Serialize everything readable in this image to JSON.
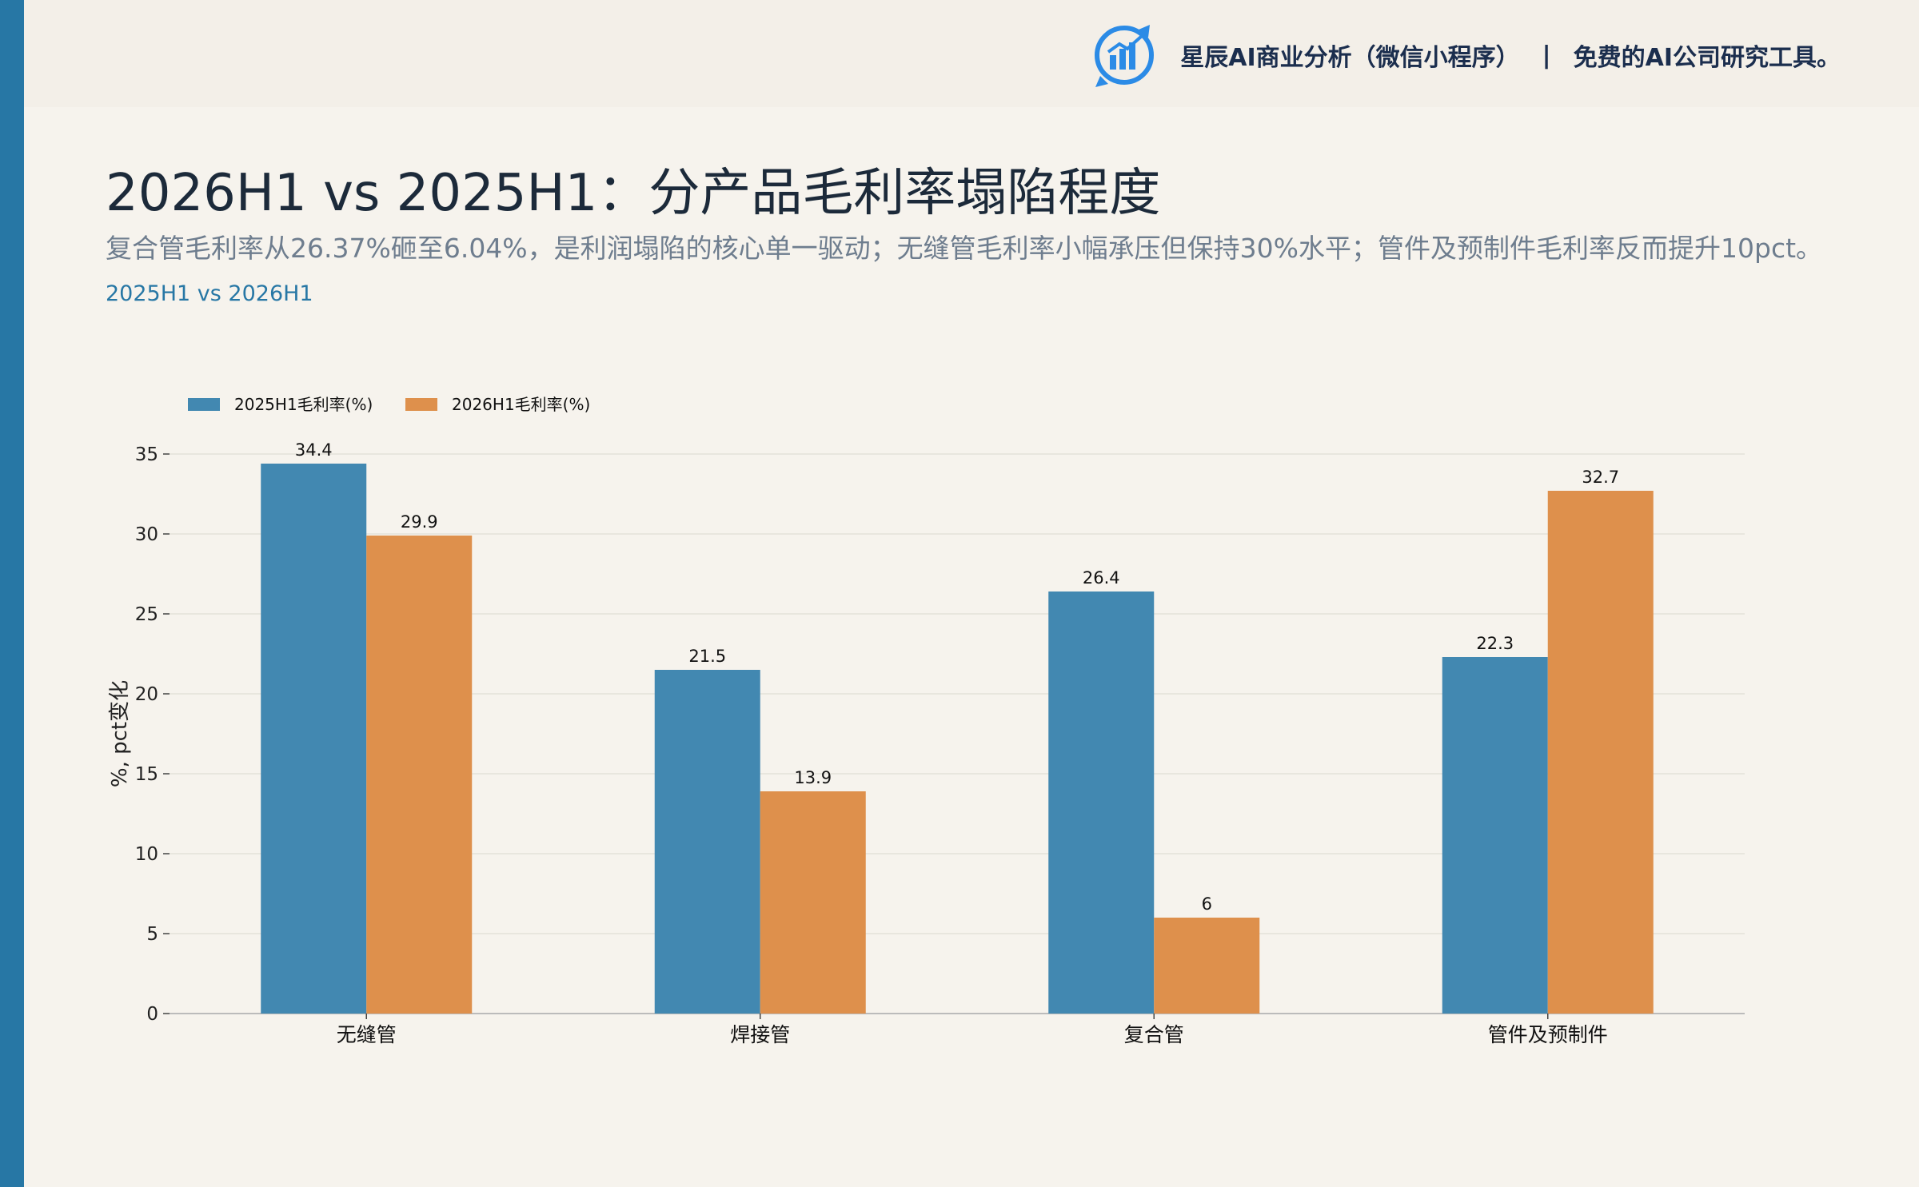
{
  "brand": {
    "name": "星辰AI商业分析（微信小程序）",
    "separator": "|",
    "tagline": "免费的AI公司研究工具。",
    "accent_color": "#2777a5",
    "logo_icon": "bar-chart-refresh-icon"
  },
  "header": {
    "title": "2026H1 vs 2025H1：分产品毛利率塌陷程度",
    "subtitle": "复合管毛利率从26.37%砸至6.04%，是利润塌陷的核心单一驱动；无缝管毛利率小幅承压但保持30%水平；管件及预制件毛利率反而提升10pct。",
    "tag": "2025H1 vs 2026H1"
  },
  "chart_data": {
    "type": "bar",
    "categories": [
      "无缝管",
      "焊接管",
      "复合管",
      "管件及预制件"
    ],
    "series": [
      {
        "name": "2025H1毛利率(%)",
        "values": [
          34.4,
          21.5,
          26.4,
          22.3
        ],
        "color": "#4288b1"
      },
      {
        "name": "2026H1毛利率(%)",
        "values": [
          29.9,
          13.9,
          6,
          32.7
        ],
        "color": "#de904c"
      }
    ],
    "data_labels": [
      [
        "34.4",
        "21.5",
        "26.4",
        "22.3"
      ],
      [
        "29.9",
        "13.9",
        "6",
        "32.7"
      ]
    ],
    "ylabel": "%, pct变化",
    "xlabel": "",
    "ylim": [
      0,
      35
    ],
    "yticks": [
      0,
      5,
      10,
      15,
      20,
      25,
      30,
      35
    ],
    "grid": true,
    "legend": "top-left"
  }
}
